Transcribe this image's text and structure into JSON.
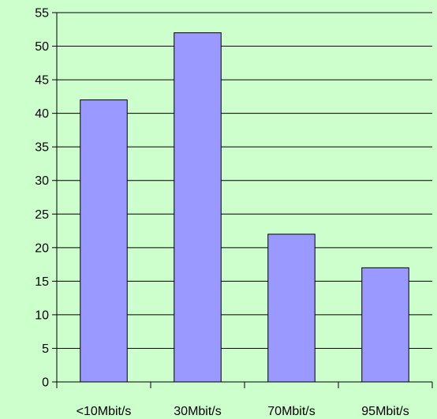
{
  "colors": {
    "background": "#ccffcc",
    "bar_fill": "#9999ff",
    "bar_stroke": "#000000",
    "gridline": "#000000",
    "axis": "#000000"
  },
  "chart_data": {
    "type": "bar",
    "title": "",
    "xlabel": "",
    "ylabel": "",
    "categories": [
      "<10Mbit/s",
      "30Mbit/s",
      "70Mbit/s",
      "95Mbit/s"
    ],
    "values": [
      42,
      52,
      22,
      17
    ],
    "ylim": [
      0,
      55
    ],
    "yticks": [
      0,
      5,
      10,
      15,
      20,
      25,
      30,
      35,
      40,
      45,
      50,
      55
    ],
    "grid": true,
    "legend": "none"
  }
}
